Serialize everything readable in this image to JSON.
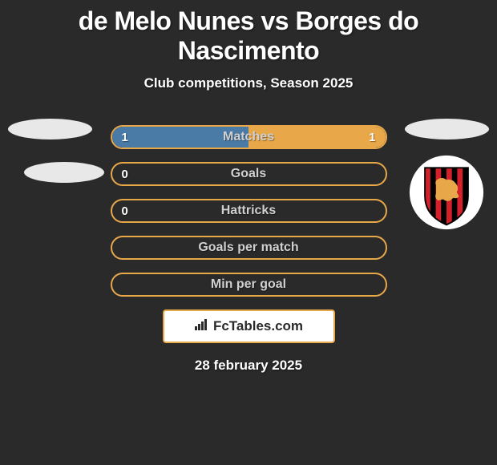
{
  "header": {
    "title": "de Melo Nunes vs Borges do Nascimento",
    "subtitle": "Club competitions, Season 2025"
  },
  "stats": {
    "rows": [
      {
        "label": "Matches",
        "left_value": "1",
        "right_value": "1",
        "left_fill_pct": 50,
        "right_fill_pct": 50,
        "left_color": "#4a7ba6",
        "right_color": "#e8a84a",
        "border_color": "#e8a84a"
      },
      {
        "label": "Goals",
        "left_value": "0",
        "right_value": "",
        "left_fill_pct": 0,
        "right_fill_pct": 0,
        "left_color": "#4a7ba6",
        "right_color": "#e8a84a",
        "border_color": "#e8a84a"
      },
      {
        "label": "Hattricks",
        "left_value": "0",
        "right_value": "",
        "left_fill_pct": 0,
        "right_fill_pct": 0,
        "left_color": "#4a7ba6",
        "right_color": "#e8a84a",
        "border_color": "#e8a84a"
      },
      {
        "label": "Goals per match",
        "left_value": "",
        "right_value": "",
        "left_fill_pct": 0,
        "right_fill_pct": 0,
        "left_color": "#4a7ba6",
        "right_color": "#e8a84a",
        "border_color": "#e8a84a"
      },
      {
        "label": "Min per goal",
        "left_value": "",
        "right_value": "",
        "left_fill_pct": 0,
        "right_fill_pct": 0,
        "left_color": "#4a7ba6",
        "right_color": "#e8a84a",
        "border_color": "#e8a84a"
      }
    ]
  },
  "branding": {
    "text": "FcTables.com",
    "border_color": "#e8a84a",
    "background_color": "#ffffff",
    "text_color": "#2a2a2a"
  },
  "footer": {
    "date": "28 february 2025"
  },
  "styling": {
    "background_color": "#2a2a2a",
    "title_color": "#ffffff",
    "title_fontsize": 32,
    "subtitle_fontsize": 17,
    "stat_label_color": "#d0d0d0",
    "stat_row_height": 30,
    "stat_row_width": 345,
    "oval_badge_color": "#e8e8e8"
  },
  "shield": {
    "stripe_colors": [
      "#000000",
      "#d4202a"
    ],
    "lion_color": "#e8a84a",
    "border_color": "#ffffff"
  }
}
